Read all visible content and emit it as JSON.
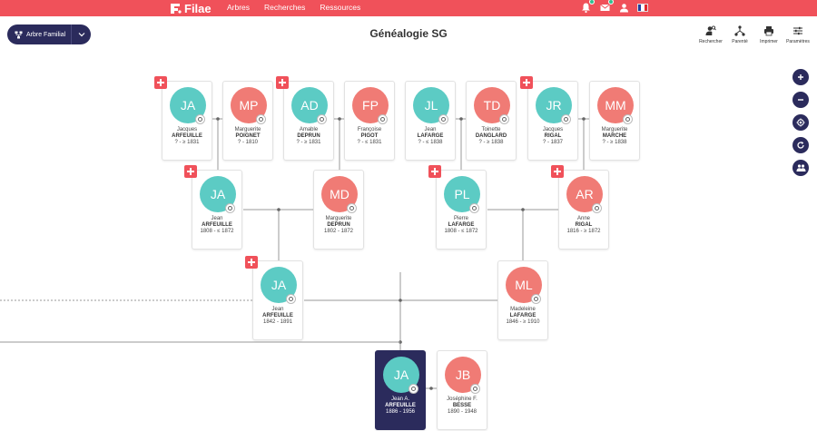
{
  "brand": {
    "name": "Filae",
    "color": "#f0515a"
  },
  "nav": [
    {
      "label": "Arbres"
    },
    {
      "label": "Recherches"
    },
    {
      "label": "Ressources"
    }
  ],
  "tree_selector": {
    "label": "Arbre Familial"
  },
  "page_title": "Généalogie SG",
  "tools": [
    {
      "icon": "person-search-icon",
      "label": "Rechercher"
    },
    {
      "icon": "relationship-icon",
      "label": "Parenté"
    },
    {
      "icon": "printer-icon",
      "label": "Imprimer"
    },
    {
      "icon": "settings-sliders-icon",
      "label": "Paramètres"
    }
  ],
  "side_controls": [
    {
      "icon": "zoom-in-icon"
    },
    {
      "icon": "zoom-out-icon"
    },
    {
      "icon": "center-target-icon"
    },
    {
      "icon": "refresh-icon"
    },
    {
      "icon": "group-icon"
    }
  ],
  "colors": {
    "male": "#5ccbc4",
    "female": "#f07b75",
    "navy": "#2b2b5c",
    "add": "#f0515a"
  },
  "people": {
    "jacques_arfeuille": {
      "initials": "JA",
      "first": "Jacques",
      "last": "ARFEUILLE",
      "dates": "? - ≥ 1831",
      "sex": "m"
    },
    "marguerite_poignet": {
      "initials": "MP",
      "first": "Marguerite",
      "last": "POIGNET",
      "dates": "? - 1810",
      "sex": "f"
    },
    "amable_deprun": {
      "initials": "AD",
      "first": "Amable",
      "last": "DEPRUN",
      "dates": "? - ≥ 1831",
      "sex": "m"
    },
    "francoise_pigot": {
      "initials": "FP",
      "first": "Françoise",
      "last": "PIGOT",
      "dates": "? - ≤ 1831",
      "sex": "f"
    },
    "jean_lafarge": {
      "initials": "JL",
      "first": "Jean",
      "last": "LAFARGE",
      "dates": "? - ≤ 1838",
      "sex": "m"
    },
    "toinette_danglard": {
      "initials": "TD",
      "first": "Toinette",
      "last": "DANGLARD",
      "dates": "? - ≥ 1838",
      "sex": "f"
    },
    "jacques_rigal": {
      "initials": "JR",
      "first": "Jacques",
      "last": "RIGAL",
      "dates": "? - 1837",
      "sex": "m"
    },
    "marguerite_marche": {
      "initials": "MM",
      "first": "Marguerite",
      "last": "MARCHE",
      "dates": "? - ≥ 1838",
      "sex": "f"
    },
    "jean_arfeuille_1808": {
      "initials": "JA",
      "first": "Jean",
      "last": "ARFEUILLE",
      "dates": "1808 - ≤ 1872",
      "sex": "m"
    },
    "marguerite_deprun": {
      "initials": "MD",
      "first": "Marguerite",
      "last": "DEPRUN",
      "dates": "1802 - 1872",
      "sex": "f"
    },
    "pierre_lafarge": {
      "initials": "PL",
      "first": "Pierre",
      "last": "LAFARGE",
      "dates": "1808 - ≤ 1872",
      "sex": "m"
    },
    "anne_rigal": {
      "initials": "AR",
      "first": "Anne",
      "last": "RIGAL",
      "dates": "1816 - ≥ 1872",
      "sex": "f"
    },
    "jean_arfeuille_1842": {
      "initials": "JA",
      "first": "Jean",
      "last": "ARFEUILLE",
      "dates": "1842 - 1891",
      "sex": "m"
    },
    "madeleine_lafarge": {
      "initials": "ML",
      "first": "Madeleine",
      "last": "LAFARGE",
      "dates": "1846 - ≥ 1910",
      "sex": "f"
    },
    "jean_a_arfeuille": {
      "initials": "JA",
      "first": "Jean A.",
      "last": "ARFEUILLE",
      "dates": "1886 - 1956",
      "sex": "m"
    },
    "josephine_besse": {
      "initials": "JB",
      "first": "Joséphine F.",
      "last": "BESSE",
      "dates": "1890 - 1948",
      "sex": "f"
    }
  }
}
